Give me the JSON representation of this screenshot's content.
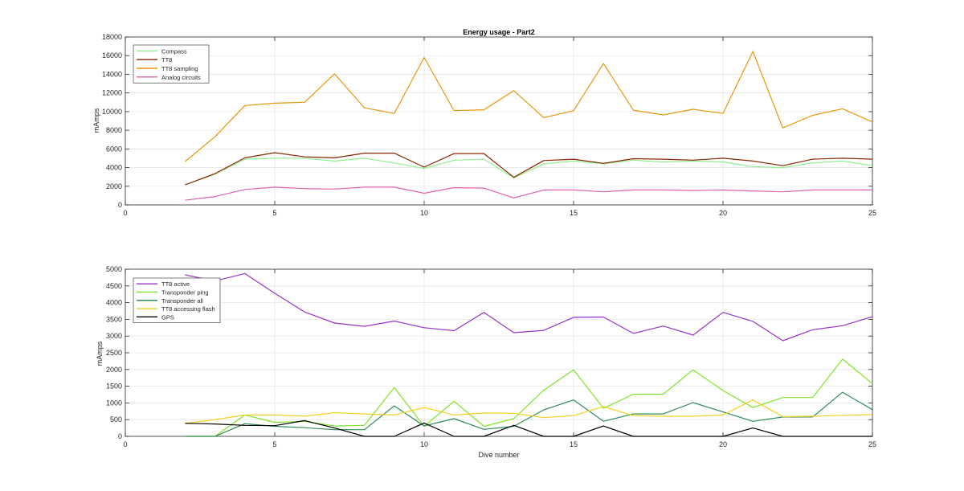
{
  "figure": {
    "background": "#ffffff"
  },
  "chart_data": [
    {
      "type": "line",
      "title": "Energy usage - Part2",
      "xlabel": "",
      "ylabel": "mAmps",
      "xlim": [
        0,
        25
      ],
      "ylim": [
        0,
        18000
      ],
      "xticks": [
        0,
        5,
        10,
        15,
        20,
        25
      ],
      "yticks": [
        0,
        2000,
        4000,
        6000,
        8000,
        10000,
        12000,
        14000,
        16000,
        18000
      ],
      "grid": true,
      "legend_position": "top-left",
      "x": [
        2,
        3,
        4,
        5,
        6,
        7,
        8,
        9,
        10,
        11,
        12,
        13,
        14,
        15,
        16,
        17,
        18,
        19,
        20,
        21,
        22,
        23,
        24,
        25
      ],
      "series": [
        {
          "name": "Compass",
          "color": "#90ee90",
          "values": [
            2150,
            3300,
            4900,
            5000,
            5000,
            4700,
            5000,
            4500,
            3900,
            4800,
            4900,
            2900,
            4400,
            4700,
            4400,
            4800,
            4600,
            4700,
            4600,
            4100,
            4000,
            4500,
            4700,
            4200
          ]
        },
        {
          "name": "TT8",
          "color": "#8b2500",
          "values": [
            2150,
            3350,
            5050,
            5600,
            5150,
            5050,
            5550,
            5550,
            4050,
            5500,
            5500,
            2950,
            4750,
            4900,
            4450,
            4950,
            4900,
            4800,
            5000,
            4700,
            4200,
            4900,
            5000,
            4900
          ]
        },
        {
          "name": "TT8 sampling",
          "color": "#e8960c",
          "values": [
            4650,
            7300,
            10650,
            10900,
            11000,
            14050,
            10400,
            9800,
            15800,
            10100,
            10200,
            12250,
            9350,
            10100,
            15150,
            10150,
            9650,
            10250,
            9800,
            16450,
            8250,
            9600,
            10300,
            8900
          ]
        },
        {
          "name": "Analog circuits",
          "color": "#e060b0",
          "values": [
            500,
            900,
            1650,
            1900,
            1750,
            1700,
            1900,
            1900,
            1250,
            1850,
            1800,
            750,
            1600,
            1600,
            1400,
            1600,
            1600,
            1550,
            1600,
            1500,
            1400,
            1600,
            1600,
            1600
          ]
        }
      ]
    },
    {
      "type": "line",
      "title": "",
      "xlabel": "Dive number",
      "ylabel": "mAmps",
      "xlim": [
        0,
        25
      ],
      "ylim": [
        0,
        5000
      ],
      "xticks": [
        0,
        5,
        10,
        15,
        20,
        25
      ],
      "yticks": [
        0,
        500,
        1000,
        1500,
        2000,
        2500,
        3000,
        3500,
        4000,
        4500,
        5000
      ],
      "grid": true,
      "legend_position": "top-left",
      "x": [
        2,
        3,
        4,
        5,
        6,
        7,
        8,
        9,
        10,
        11,
        12,
        13,
        14,
        15,
        16,
        17,
        18,
        19,
        20,
        21,
        22,
        23,
        24,
        25
      ],
      "series": [
        {
          "name": "TT8 active",
          "color": "#9932cc",
          "values": [
            4830,
            4650,
            4870,
            4280,
            3720,
            3390,
            3290,
            3450,
            3250,
            3160,
            3710,
            3100,
            3170,
            3560,
            3570,
            3080,
            3300,
            3030,
            3710,
            3440,
            2860,
            3190,
            3310,
            3580
          ]
        },
        {
          "name": "Transponder ping",
          "color": "#7fe32a",
          "values": [
            0,
            0,
            640,
            420,
            450,
            310,
            330,
            1460,
            300,
            1050,
            300,
            530,
            1380,
            1990,
            840,
            1260,
            1260,
            1990,
            1370,
            860,
            1160,
            1160,
            2310,
            1580
          ]
        },
        {
          "name": "Transponder all",
          "color": "#2e8b57",
          "values": [
            0,
            0,
            380,
            300,
            260,
            200,
            200,
            910,
            310,
            530,
            210,
            300,
            790,
            1090,
            450,
            670,
            670,
            1010,
            730,
            450,
            580,
            580,
            1320,
            800
          ]
        },
        {
          "name": "TT8 accessing flash",
          "color": "#f0d020",
          "values": [
            390,
            500,
            640,
            640,
            600,
            710,
            670,
            640,
            860,
            640,
            700,
            690,
            560,
            620,
            890,
            620,
            600,
            600,
            640,
            1090,
            590,
            600,
            630,
            650
          ]
        },
        {
          "name": "GPS",
          "color": "#000000",
          "values": [
            390,
            370,
            330,
            320,
            470,
            250,
            0,
            0,
            400,
            0,
            0,
            330,
            0,
            0,
            310,
            0,
            0,
            0,
            0,
            250,
            0,
            0,
            0,
            0
          ]
        }
      ]
    }
  ]
}
